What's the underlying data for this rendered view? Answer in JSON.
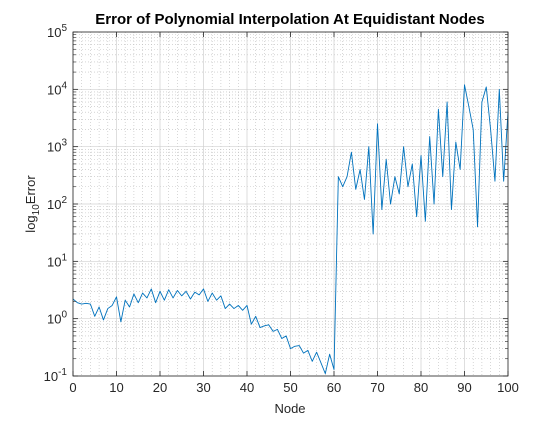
{
  "chart_data": {
    "type": "line",
    "title": "Error of Polynomial Interpolation At Equidistant Nodes",
    "xlabel": "Node",
    "ylabel_base": "log",
    "ylabel_sub": "10",
    "ylabel_rest": "Error",
    "xlim": [
      0,
      100
    ],
    "ylim": [
      0.1,
      100000
    ],
    "yscale": "log",
    "grid": true,
    "minor_grid": true,
    "x_ticks": [
      "0",
      "10",
      "20",
      "30",
      "40",
      "50",
      "60",
      "70",
      "80",
      "90",
      "100"
    ],
    "y_ticks": [
      {
        "base": "10",
        "exp": "-1"
      },
      {
        "base": "10",
        "exp": "0"
      },
      {
        "base": "10",
        "exp": "1"
      },
      {
        "base": "10",
        "exp": "2"
      },
      {
        "base": "10",
        "exp": "3"
      },
      {
        "base": "10",
        "exp": "4"
      },
      {
        "base": "10",
        "exp": "5"
      }
    ],
    "series": [
      {
        "color": "#0072BD",
        "x": [
          0,
          1,
          2,
          3,
          4,
          5,
          6,
          7,
          8,
          9,
          10,
          11,
          12,
          13,
          14,
          15,
          16,
          17,
          18,
          19,
          20,
          21,
          22,
          23,
          24,
          25,
          26,
          27,
          28,
          29,
          30,
          31,
          32,
          33,
          34,
          35,
          36,
          37,
          38,
          39,
          40,
          41,
          42,
          43,
          44,
          45,
          46,
          47,
          48,
          49,
          50,
          51,
          52,
          53,
          54,
          55,
          56,
          57,
          58,
          59,
          60,
          61,
          62,
          63,
          64,
          65,
          66,
          67,
          68,
          69,
          70,
          71,
          72,
          73,
          74,
          75,
          76,
          77,
          78,
          79,
          80,
          81,
          82,
          83,
          84,
          85,
          86,
          87,
          88,
          89,
          90,
          91,
          92,
          93,
          94,
          95,
          96,
          97,
          98,
          99,
          100
        ],
        "y": [
          2.2,
          1.9,
          1.8,
          1.85,
          1.8,
          1.1,
          1.6,
          0.95,
          1.5,
          1.7,
          2.4,
          0.88,
          2.1,
          1.6,
          2.7,
          1.9,
          2.8,
          2.3,
          3.3,
          1.9,
          3.0,
          2.1,
          3.2,
          2.3,
          3.1,
          2.5,
          3.0,
          2.2,
          2.9,
          2.6,
          3.3,
          2.0,
          2.8,
          2.1,
          2.5,
          1.5,
          1.8,
          1.5,
          1.7,
          1.4,
          1.7,
          0.8,
          1.1,
          0.7,
          0.75,
          0.78,
          0.6,
          0.65,
          0.45,
          0.5,
          0.3,
          0.33,
          0.34,
          0.25,
          0.28,
          0.18,
          0.26,
          0.17,
          0.11,
          0.24,
          0.13,
          300,
          200,
          300,
          800,
          180,
          400,
          120,
          1000,
          30,
          2500,
          80,
          600,
          100,
          300,
          150,
          1000,
          200,
          500,
          60,
          700,
          50,
          1500,
          100,
          4500,
          300,
          6000,
          80,
          1200,
          400,
          12000,
          5000,
          2000,
          40,
          6000,
          11000,
          2000,
          250,
          10000,
          250,
          4000
        ]
      }
    ]
  }
}
